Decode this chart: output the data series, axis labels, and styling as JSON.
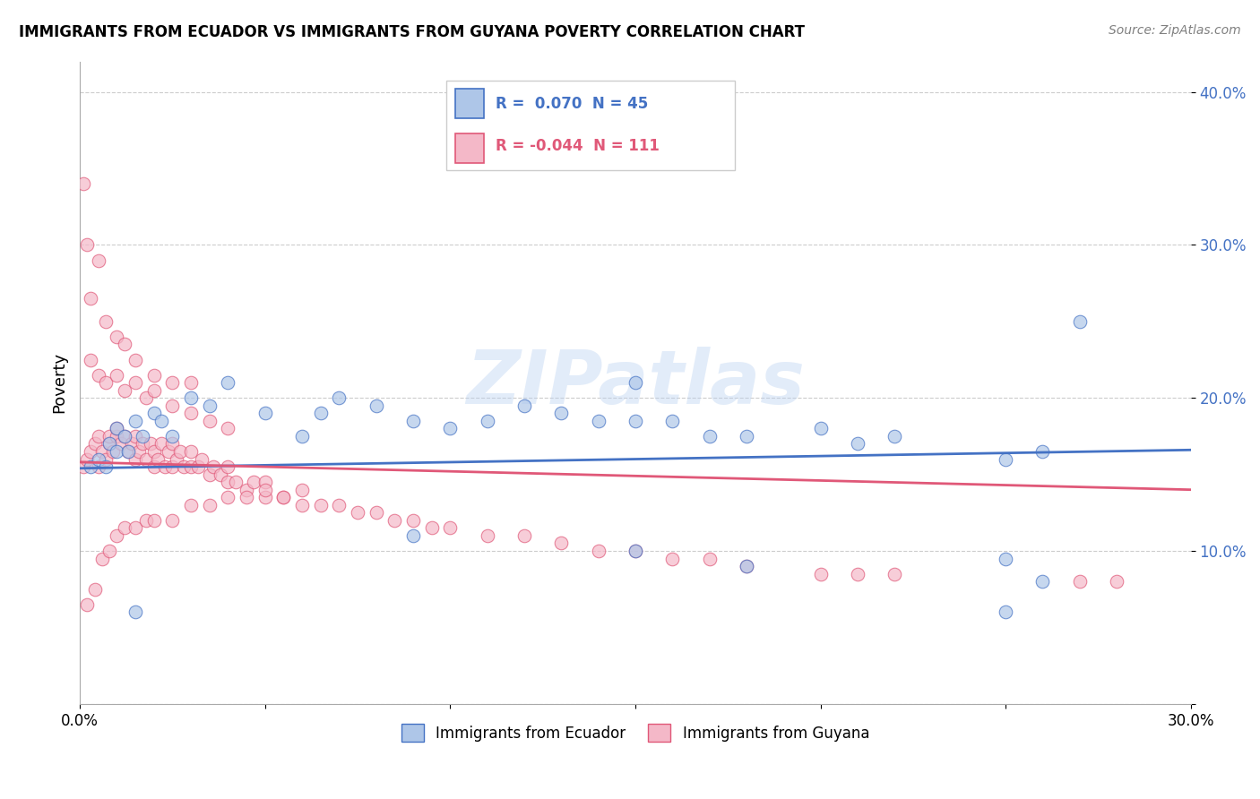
{
  "title": "IMMIGRANTS FROM ECUADOR VS IMMIGRANTS FROM GUYANA POVERTY CORRELATION CHART",
  "source": "Source: ZipAtlas.com",
  "ylabel": "Poverty",
  "xlim": [
    0.0,
    0.3
  ],
  "ylim": [
    0.0,
    0.42
  ],
  "xticks": [
    0.0,
    0.05,
    0.1,
    0.15,
    0.2,
    0.25,
    0.3
  ],
  "xticklabels": [
    "0.0%",
    "",
    "",
    "",
    "",
    "",
    "30.0%"
  ],
  "yticks": [
    0.0,
    0.1,
    0.2,
    0.3,
    0.4
  ],
  "yticklabels": [
    "",
    "10.0%",
    "20.0%",
    "30.0%",
    "40.0%"
  ],
  "ecuador_color": "#aec6e8",
  "guyana_color": "#f4b8c8",
  "ecuador_edge_color": "#4472c4",
  "guyana_edge_color": "#e05878",
  "ecuador_line_color": "#4472c4",
  "guyana_line_color": "#e05878",
  "ecuador_R": 0.07,
  "ecuador_N": 45,
  "guyana_R": -0.044,
  "guyana_N": 111,
  "watermark": "ZIPatlas",
  "legend_label_ecuador": "Immigrants from Ecuador",
  "legend_label_guyana": "Immigrants from Guyana",
  "ecuador_scatter_x": [
    0.003,
    0.005,
    0.007,
    0.008,
    0.01,
    0.01,
    0.012,
    0.013,
    0.015,
    0.017,
    0.02,
    0.022,
    0.025,
    0.03,
    0.035,
    0.04,
    0.05,
    0.06,
    0.065,
    0.07,
    0.08,
    0.09,
    0.1,
    0.11,
    0.12,
    0.13,
    0.14,
    0.15,
    0.16,
    0.17,
    0.18,
    0.2,
    0.21,
    0.22,
    0.25,
    0.26,
    0.15,
    0.18,
    0.25,
    0.26,
    0.27,
    0.25,
    0.015,
    0.15,
    0.09
  ],
  "ecuador_scatter_y": [
    0.155,
    0.16,
    0.155,
    0.17,
    0.165,
    0.18,
    0.175,
    0.165,
    0.185,
    0.175,
    0.19,
    0.185,
    0.175,
    0.2,
    0.195,
    0.21,
    0.19,
    0.175,
    0.19,
    0.2,
    0.195,
    0.185,
    0.18,
    0.185,
    0.195,
    0.19,
    0.185,
    0.185,
    0.185,
    0.175,
    0.175,
    0.18,
    0.17,
    0.175,
    0.16,
    0.165,
    0.1,
    0.09,
    0.095,
    0.08,
    0.25,
    0.06,
    0.06,
    0.21,
    0.11
  ],
  "guyana_scatter_x": [
    0.001,
    0.002,
    0.003,
    0.004,
    0.005,
    0.005,
    0.006,
    0.007,
    0.008,
    0.008,
    0.009,
    0.01,
    0.01,
    0.011,
    0.012,
    0.013,
    0.014,
    0.015,
    0.015,
    0.016,
    0.017,
    0.018,
    0.019,
    0.02,
    0.02,
    0.021,
    0.022,
    0.023,
    0.024,
    0.025,
    0.025,
    0.026,
    0.027,
    0.028,
    0.03,
    0.03,
    0.032,
    0.033,
    0.035,
    0.036,
    0.038,
    0.04,
    0.04,
    0.042,
    0.045,
    0.047,
    0.05,
    0.05,
    0.055,
    0.06,
    0.06,
    0.065,
    0.07,
    0.075,
    0.08,
    0.085,
    0.09,
    0.095,
    0.1,
    0.11,
    0.12,
    0.13,
    0.14,
    0.15,
    0.16,
    0.17,
    0.18,
    0.2,
    0.21,
    0.22,
    0.27,
    0.28,
    0.003,
    0.005,
    0.007,
    0.01,
    0.012,
    0.015,
    0.018,
    0.02,
    0.025,
    0.03,
    0.035,
    0.04,
    0.001,
    0.002,
    0.003,
    0.005,
    0.007,
    0.01,
    0.012,
    0.015,
    0.02,
    0.025,
    0.03,
    0.002,
    0.004,
    0.006,
    0.008,
    0.01,
    0.012,
    0.015,
    0.018,
    0.02,
    0.025,
    0.03,
    0.035,
    0.04,
    0.045,
    0.05,
    0.055
  ],
  "guyana_scatter_y": [
    0.155,
    0.16,
    0.165,
    0.17,
    0.155,
    0.175,
    0.165,
    0.16,
    0.17,
    0.175,
    0.165,
    0.175,
    0.18,
    0.17,
    0.175,
    0.165,
    0.17,
    0.16,
    0.175,
    0.165,
    0.17,
    0.16,
    0.17,
    0.155,
    0.165,
    0.16,
    0.17,
    0.155,
    0.165,
    0.155,
    0.17,
    0.16,
    0.165,
    0.155,
    0.155,
    0.165,
    0.155,
    0.16,
    0.15,
    0.155,
    0.15,
    0.145,
    0.155,
    0.145,
    0.14,
    0.145,
    0.135,
    0.145,
    0.135,
    0.13,
    0.14,
    0.13,
    0.13,
    0.125,
    0.125,
    0.12,
    0.12,
    0.115,
    0.115,
    0.11,
    0.11,
    0.105,
    0.1,
    0.1,
    0.095,
    0.095,
    0.09,
    0.085,
    0.085,
    0.085,
    0.08,
    0.08,
    0.225,
    0.215,
    0.21,
    0.215,
    0.205,
    0.21,
    0.2,
    0.205,
    0.195,
    0.19,
    0.185,
    0.18,
    0.34,
    0.3,
    0.265,
    0.29,
    0.25,
    0.24,
    0.235,
    0.225,
    0.215,
    0.21,
    0.21,
    0.065,
    0.075,
    0.095,
    0.1,
    0.11,
    0.115,
    0.115,
    0.12,
    0.12,
    0.12,
    0.13,
    0.13,
    0.135,
    0.135,
    0.14,
    0.135
  ]
}
